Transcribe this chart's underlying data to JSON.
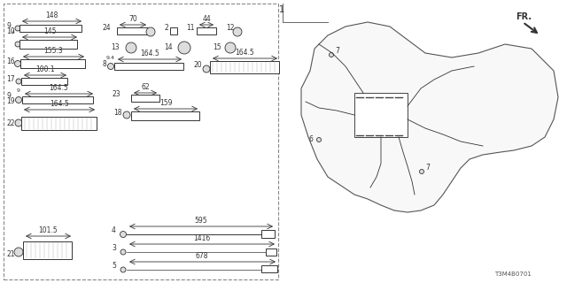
{
  "title": "",
  "bg_color": "#ffffff",
  "line_color": "#333333",
  "part_number": "T3M4B0701",
  "diagram_number": "1",
  "parts": [
    {
      "id": 9,
      "label": "148",
      "row": 0,
      "col": 0
    },
    {
      "id": 10,
      "label": "145",
      "row": 1,
      "col": 0
    },
    {
      "id": 16,
      "label": "155.3",
      "row": 2,
      "col": 0
    },
    {
      "id": 17,
      "label": "100.1",
      "row": 3,
      "col": 0
    },
    {
      "id": 19,
      "label": "164.5",
      "row": 4,
      "col": 0
    },
    {
      "id": 22,
      "label": "164.5",
      "row": 5,
      "col": 0
    },
    {
      "id": 21,
      "label": "101.5",
      "row": 6,
      "col": 0
    },
    {
      "id": 24,
      "label": "70",
      "row": 0,
      "col": 1
    },
    {
      "id": 8,
      "label": "164.5",
      "row": 2,
      "col": 1
    },
    {
      "id": 23,
      "label": "62",
      "row": 4,
      "col": 1
    },
    {
      "id": 18,
      "label": "159",
      "row": 5,
      "col": 1
    },
    {
      "id": 4,
      "label": "595",
      "row": 6,
      "col": 1
    },
    {
      "id": 3,
      "label": "1416",
      "row": 7,
      "col": 1
    },
    {
      "id": 5,
      "label": "678",
      "row": 8,
      "col": 1
    },
    {
      "id": 20,
      "label": "164.5",
      "row": 2,
      "col": 2
    },
    {
      "id": 2,
      "label": "",
      "row": 0,
      "col": 2
    },
    {
      "id": 11,
      "label": "44",
      "row": 0,
      "col": 3
    },
    {
      "id": 12,
      "label": "",
      "row": 0,
      "col": 4
    },
    {
      "id": 13,
      "label": "",
      "row": 1,
      "col": 2
    },
    {
      "id": 14,
      "label": "",
      "row": 1,
      "col": 3
    },
    {
      "id": 15,
      "label": "",
      "row": 1,
      "col": 4
    }
  ]
}
